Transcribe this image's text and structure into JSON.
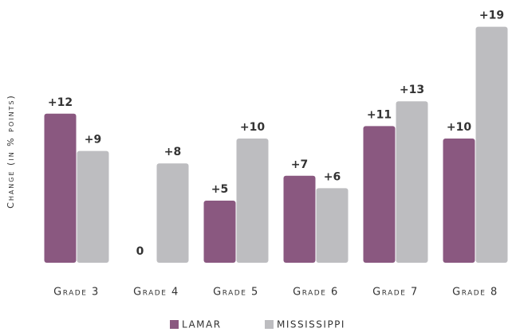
{
  "chart_data": {
    "type": "bar",
    "y_label": "Change (in % points)",
    "categories": [
      "Grade 3",
      "Grade 4",
      "Grade 5",
      "Grade 6",
      "Grade 7",
      "Grade 8"
    ],
    "series": [
      {
        "name": "Lamar",
        "color": "#8a5880",
        "values": [
          12,
          0,
          5,
          7,
          11,
          10
        ],
        "value_labels": [
          "+12",
          "0",
          "+5",
          "+7",
          "+11",
          "+10"
        ]
      },
      {
        "name": "Mississippi",
        "color": "#bdbdc0",
        "values": [
          9,
          8,
          10,
          6,
          13,
          19
        ],
        "value_labels": [
          "+9",
          "+8",
          "+10",
          "+6",
          "+13",
          "+19"
        ]
      }
    ],
    "ylim": [
      0,
      20
    ],
    "legend": "bottom"
  }
}
